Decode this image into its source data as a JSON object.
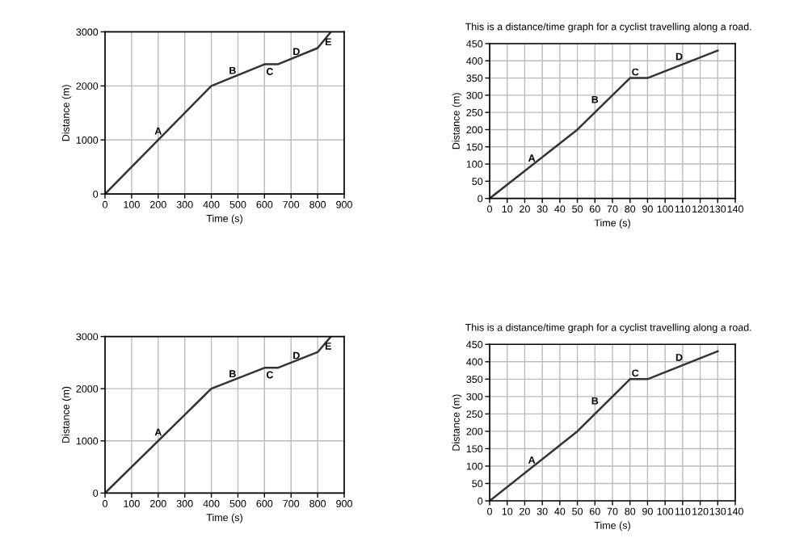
{
  "chart_data": [
    {
      "type": "line",
      "x": [
        0,
        400,
        600,
        650,
        800,
        850
      ],
      "values": [
        0,
        2000,
        2400,
        2400,
        2700,
        3000
      ],
      "color": "#333333",
      "xlabel": "Time (s)",
      "ylabel": "Distance (m)",
      "xlim": [
        0,
        900
      ],
      "xticks": [
        0,
        100,
        200,
        300,
        400,
        500,
        600,
        700,
        800,
        900
      ],
      "ylim": [
        0,
        3000
      ],
      "yticks": [
        0,
        1000,
        2000,
        3000
      ],
      "grid": true,
      "marker": "none",
      "line_style": "solid",
      "annotations": [
        {
          "text": "A",
          "x": 200,
          "y": 1150
        },
        {
          "text": "B",
          "x": 480,
          "y": 2270
        },
        {
          "text": "C",
          "x": 620,
          "y": 2250
        },
        {
          "text": "D",
          "x": 720,
          "y": 2620
        },
        {
          "text": "E",
          "x": 840,
          "y": 2800
        }
      ]
    },
    {
      "type": "line",
      "title": "This is a distance/time graph for a cyclist travelling along a road.",
      "x": [
        0,
        50,
        80,
        90,
        130
      ],
      "values": [
        0,
        200,
        350,
        350,
        430
      ],
      "color": "#333333",
      "xlabel": "Time (s)",
      "ylabel": "Distance (m)",
      "xlim": [
        0,
        140
      ],
      "xticks": [
        0,
        10,
        20,
        30,
        40,
        50,
        60,
        70,
        80,
        90,
        100,
        110,
        120,
        130,
        140
      ],
      "ylim": [
        0,
        450
      ],
      "yticks": [
        0,
        50,
        100,
        150,
        200,
        250,
        300,
        350,
        400,
        450
      ],
      "grid": true,
      "marker": "none",
      "line_style": "solid",
      "annotations": [
        {
          "text": "A",
          "x": 24,
          "y": 115
        },
        {
          "text": "B",
          "x": 60,
          "y": 285
        },
        {
          "text": "C",
          "x": 83,
          "y": 365
        },
        {
          "text": "D",
          "x": 108,
          "y": 410
        }
      ]
    },
    {
      "type": "line",
      "x": [
        0,
        400,
        600,
        650,
        800,
        850
      ],
      "values": [
        0,
        2000,
        2400,
        2400,
        2700,
        3000
      ],
      "color": "#333333",
      "xlabel": "Time (s)",
      "ylabel": "Distance (m)",
      "xlim": [
        0,
        900
      ],
      "xticks": [
        0,
        100,
        200,
        300,
        400,
        500,
        600,
        700,
        800,
        900
      ],
      "ylim": [
        0,
        3000
      ],
      "yticks": [
        0,
        1000,
        2000,
        3000
      ],
      "grid": true,
      "marker": "none",
      "line_style": "solid",
      "annotations": [
        {
          "text": "A",
          "x": 200,
          "y": 1150
        },
        {
          "text": "B",
          "x": 480,
          "y": 2270
        },
        {
          "text": "C",
          "x": 620,
          "y": 2250
        },
        {
          "text": "D",
          "x": 720,
          "y": 2620
        },
        {
          "text": "E",
          "x": 840,
          "y": 2800
        }
      ]
    },
    {
      "type": "line",
      "title": "This is a distance/time graph for a cyclist travelling along a road.",
      "x": [
        0,
        50,
        80,
        90,
        130
      ],
      "values": [
        0,
        200,
        350,
        350,
        430
      ],
      "color": "#333333",
      "xlabel": "Time (s)",
      "ylabel": "Distance (m)",
      "xlim": [
        0,
        140
      ],
      "xticks": [
        0,
        10,
        20,
        30,
        40,
        50,
        60,
        70,
        80,
        90,
        100,
        110,
        120,
        130,
        140
      ],
      "ylim": [
        0,
        450
      ],
      "yticks": [
        0,
        50,
        100,
        150,
        200,
        250,
        300,
        350,
        400,
        450
      ],
      "grid": true,
      "marker": "none",
      "line_style": "solid",
      "annotations": [
        {
          "text": "A",
          "x": 24,
          "y": 115
        },
        {
          "text": "B",
          "x": 60,
          "y": 285
        },
        {
          "text": "C",
          "x": 83,
          "y": 365
        },
        {
          "text": "D",
          "x": 108,
          "y": 410
        }
      ]
    }
  ]
}
